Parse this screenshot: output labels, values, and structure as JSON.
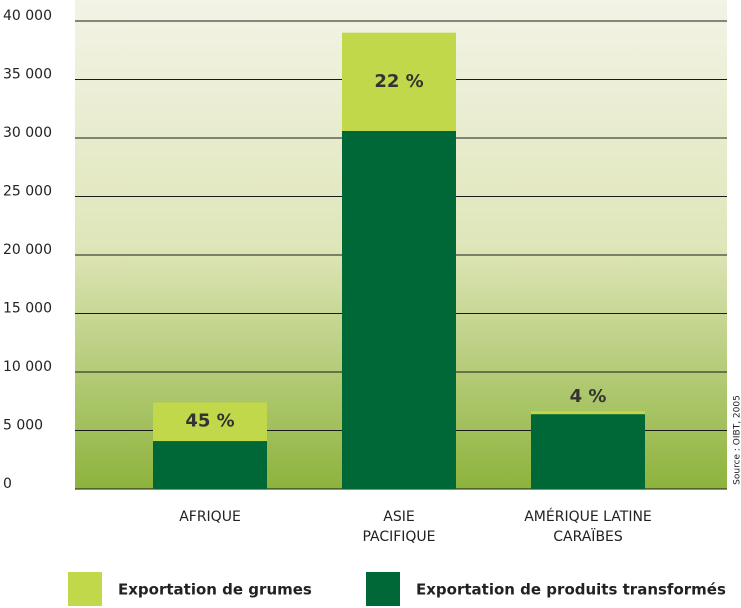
{
  "chart_data": {
    "type": "stacked-bar",
    "categories": [
      [
        "AFRIQUE"
      ],
      [
        "ASIE",
        "PACIFIQUE"
      ],
      [
        "AMÉRIQUE LATINE",
        "CARAÏBES"
      ]
    ],
    "series": [
      {
        "name": "Exportation de produits transformés",
        "color": "#006837",
        "values": [
          4100,
          30600,
          6400
        ]
      },
      {
        "name": "Exportation de grumes",
        "color": "#c0d84a",
        "values": [
          3300,
          8400,
          250
        ]
      }
    ],
    "share_labels": [
      "45 %",
      "22 %",
      "4 %"
    ],
    "source": "Source : OIBT, 2005",
    "ylim": [
      0,
      40000
    ],
    "yticks": [
      0,
      {
        "value": 5000,
        "label": "5 000"
      },
      {
        "value": 10000,
        "label": "10 000"
      },
      {
        "value": 15000,
        "label": "15 000"
      },
      {
        "value": 20000,
        "label": "20 000"
      },
      {
        "value": 25000,
        "label": "25 000"
      },
      {
        "value": 30000,
        "label": "30 000"
      },
      {
        "value": 35000,
        "label": "35 000"
      },
      {
        "value": 40000,
        "label": "40 000"
      }
    ],
    "grid": true
  }
}
